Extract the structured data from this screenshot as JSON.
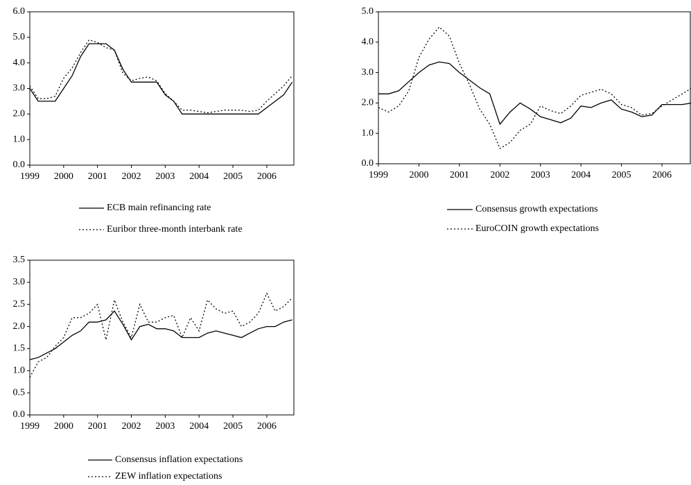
{
  "chart_data": [
    {
      "type": "line",
      "x": [
        1999,
        1999.25,
        1999.5,
        1999.75,
        2000,
        2000.25,
        2000.5,
        2000.75,
        2001,
        2001.25,
        2001.5,
        2001.75,
        2002,
        2002.25,
        2002.5,
        2002.75,
        2003,
        2003.25,
        2003.5,
        2003.75,
        2004,
        2004.25,
        2004.5,
        2004.75,
        2005,
        2005.25,
        2005.5,
        2005.75,
        2006,
        2006.25,
        2006.5,
        2006.75
      ],
      "series": [
        {
          "name": "ECB main refinancing rate",
          "color": "#000000",
          "style": "solid",
          "values": [
            3.0,
            2.5,
            2.5,
            2.5,
            3.0,
            3.5,
            4.25,
            4.75,
            4.75,
            4.75,
            4.5,
            3.75,
            3.25,
            3.25,
            3.25,
            3.25,
            2.75,
            2.5,
            2.0,
            2.0,
            2.0,
            2.0,
            2.0,
            2.0,
            2.0,
            2.0,
            2.0,
            2.0,
            2.25,
            2.5,
            2.75,
            3.25
          ]
        },
        {
          "name": "Euribor three-month interbank rate",
          "color": "#000000",
          "style": "dotted",
          "values": [
            3.1,
            2.6,
            2.6,
            2.7,
            3.4,
            3.8,
            4.4,
            4.9,
            4.8,
            4.6,
            4.5,
            3.6,
            3.3,
            3.4,
            3.45,
            3.3,
            2.8,
            2.5,
            2.15,
            2.15,
            2.1,
            2.05,
            2.1,
            2.15,
            2.15,
            2.15,
            2.1,
            2.15,
            2.5,
            2.8,
            3.1,
            3.5
          ]
        }
      ],
      "xlim": [
        1999,
        2006.8
      ],
      "xticks": [
        1999,
        2000,
        2001,
        2002,
        2003,
        2004,
        2005,
        2006
      ],
      "ylim": [
        0,
        6
      ],
      "yticks": [
        {
          "value": 0,
          "label": "0.0"
        },
        {
          "value": 1,
          "label": "1.0"
        },
        {
          "value": 2,
          "label": "2.0"
        },
        {
          "value": 3,
          "label": "3.0"
        },
        {
          "value": 4,
          "label": "4.0"
        },
        {
          "value": 5,
          "label": "5.0"
        },
        {
          "value": 6,
          "label": "6.0"
        }
      ]
    },
    {
      "type": "line",
      "x": [
        1999,
        1999.25,
        1999.5,
        1999.75,
        2000,
        2000.25,
        2000.5,
        2000.75,
        2001,
        2001.25,
        2001.5,
        2001.75,
        2002,
        2002.25,
        2002.5,
        2002.75,
        2003,
        2003.25,
        2003.5,
        2003.75,
        2004,
        2004.25,
        2004.5,
        2004.75,
        2005,
        2005.25,
        2005.5,
        2005.75,
        2006,
        2006.25,
        2006.5,
        2006.75
      ],
      "series": [
        {
          "name": "Consensus growth expectations",
          "color": "#000000",
          "style": "solid",
          "values": [
            2.3,
            2.3,
            2.4,
            2.7,
            3.0,
            3.25,
            3.35,
            3.3,
            3.0,
            2.75,
            2.5,
            2.3,
            1.3,
            1.7,
            2.0,
            1.8,
            1.55,
            1.45,
            1.35,
            1.5,
            1.9,
            1.85,
            2.0,
            2.1,
            1.8,
            1.7,
            1.55,
            1.6,
            1.95,
            1.95,
            1.95,
            2.0
          ]
        },
        {
          "name": "EuroCOIN growth expectations",
          "color": "#000000",
          "style": "dotted",
          "values": [
            1.85,
            1.7,
            1.9,
            2.4,
            3.5,
            4.1,
            4.5,
            4.2,
            3.3,
            2.6,
            1.8,
            1.3,
            0.5,
            0.7,
            1.1,
            1.3,
            1.9,
            1.75,
            1.65,
            1.9,
            2.25,
            2.35,
            2.45,
            2.3,
            1.95,
            1.85,
            1.6,
            1.65,
            1.9,
            2.1,
            2.3,
            2.5
          ]
        }
      ],
      "xlim": [
        1999,
        2006.7
      ],
      "xticks": [
        1999,
        2000,
        2001,
        2002,
        2003,
        2004,
        2005,
        2006
      ],
      "ylim": [
        0,
        5
      ],
      "yticks": [
        {
          "value": 0,
          "label": "0.0"
        },
        {
          "value": 1,
          "label": "1.0"
        },
        {
          "value": 2,
          "label": "2.0"
        },
        {
          "value": 3,
          "label": "3.0"
        },
        {
          "value": 4,
          "label": "4.0"
        },
        {
          "value": 5,
          "label": "5.0"
        }
      ]
    },
    {
      "type": "line",
      "x": [
        1999,
        1999.25,
        1999.5,
        1999.75,
        2000,
        2000.25,
        2000.5,
        2000.75,
        2001,
        2001.25,
        2001.5,
        2001.75,
        2002,
        2002.25,
        2002.5,
        2002.75,
        2003,
        2003.25,
        2003.5,
        2003.75,
        2004,
        2004.25,
        2004.5,
        2004.75,
        2005,
        2005.25,
        2005.5,
        2005.75,
        2006,
        2006.25,
        2006.5,
        2006.75
      ],
      "series": [
        {
          "name": "Consensus inflation expectations",
          "color": "#000000",
          "style": "solid",
          "values": [
            1.25,
            1.3,
            1.4,
            1.5,
            1.65,
            1.8,
            1.9,
            2.1,
            2.1,
            2.15,
            2.35,
            2.05,
            1.7,
            2.0,
            2.05,
            1.95,
            1.95,
            1.9,
            1.75,
            1.75,
            1.75,
            1.85,
            1.9,
            1.85,
            1.8,
            1.75,
            1.85,
            1.95,
            2.0,
            2.0,
            2.1,
            2.15
          ]
        },
        {
          "name": "ZEW inflation expectations",
          "color": "#000000",
          "style": "dotted",
          "values": [
            0.85,
            1.2,
            1.3,
            1.55,
            1.75,
            2.2,
            2.2,
            2.3,
            2.5,
            1.7,
            2.6,
            2.1,
            1.75,
            2.5,
            2.1,
            2.1,
            2.2,
            2.25,
            1.75,
            2.2,
            1.9,
            2.6,
            2.4,
            2.3,
            2.35,
            2.0,
            2.1,
            2.3,
            2.75,
            2.35,
            2.45,
            2.65
          ]
        }
      ],
      "xlim": [
        1999,
        2006.8
      ],
      "xticks": [
        1999,
        2000,
        2001,
        2002,
        2003,
        2004,
        2005,
        2006
      ],
      "ylim": [
        0,
        3.5
      ],
      "yticks": [
        {
          "value": 0,
          "label": "0.0"
        },
        0.5,
        {
          "value": 1,
          "label": "1.0"
        },
        1.5,
        {
          "value": 2,
          "label": "2.0"
        },
        2.5,
        {
          "value": 3,
          "label": "3.0"
        },
        3.5
      ]
    }
  ]
}
